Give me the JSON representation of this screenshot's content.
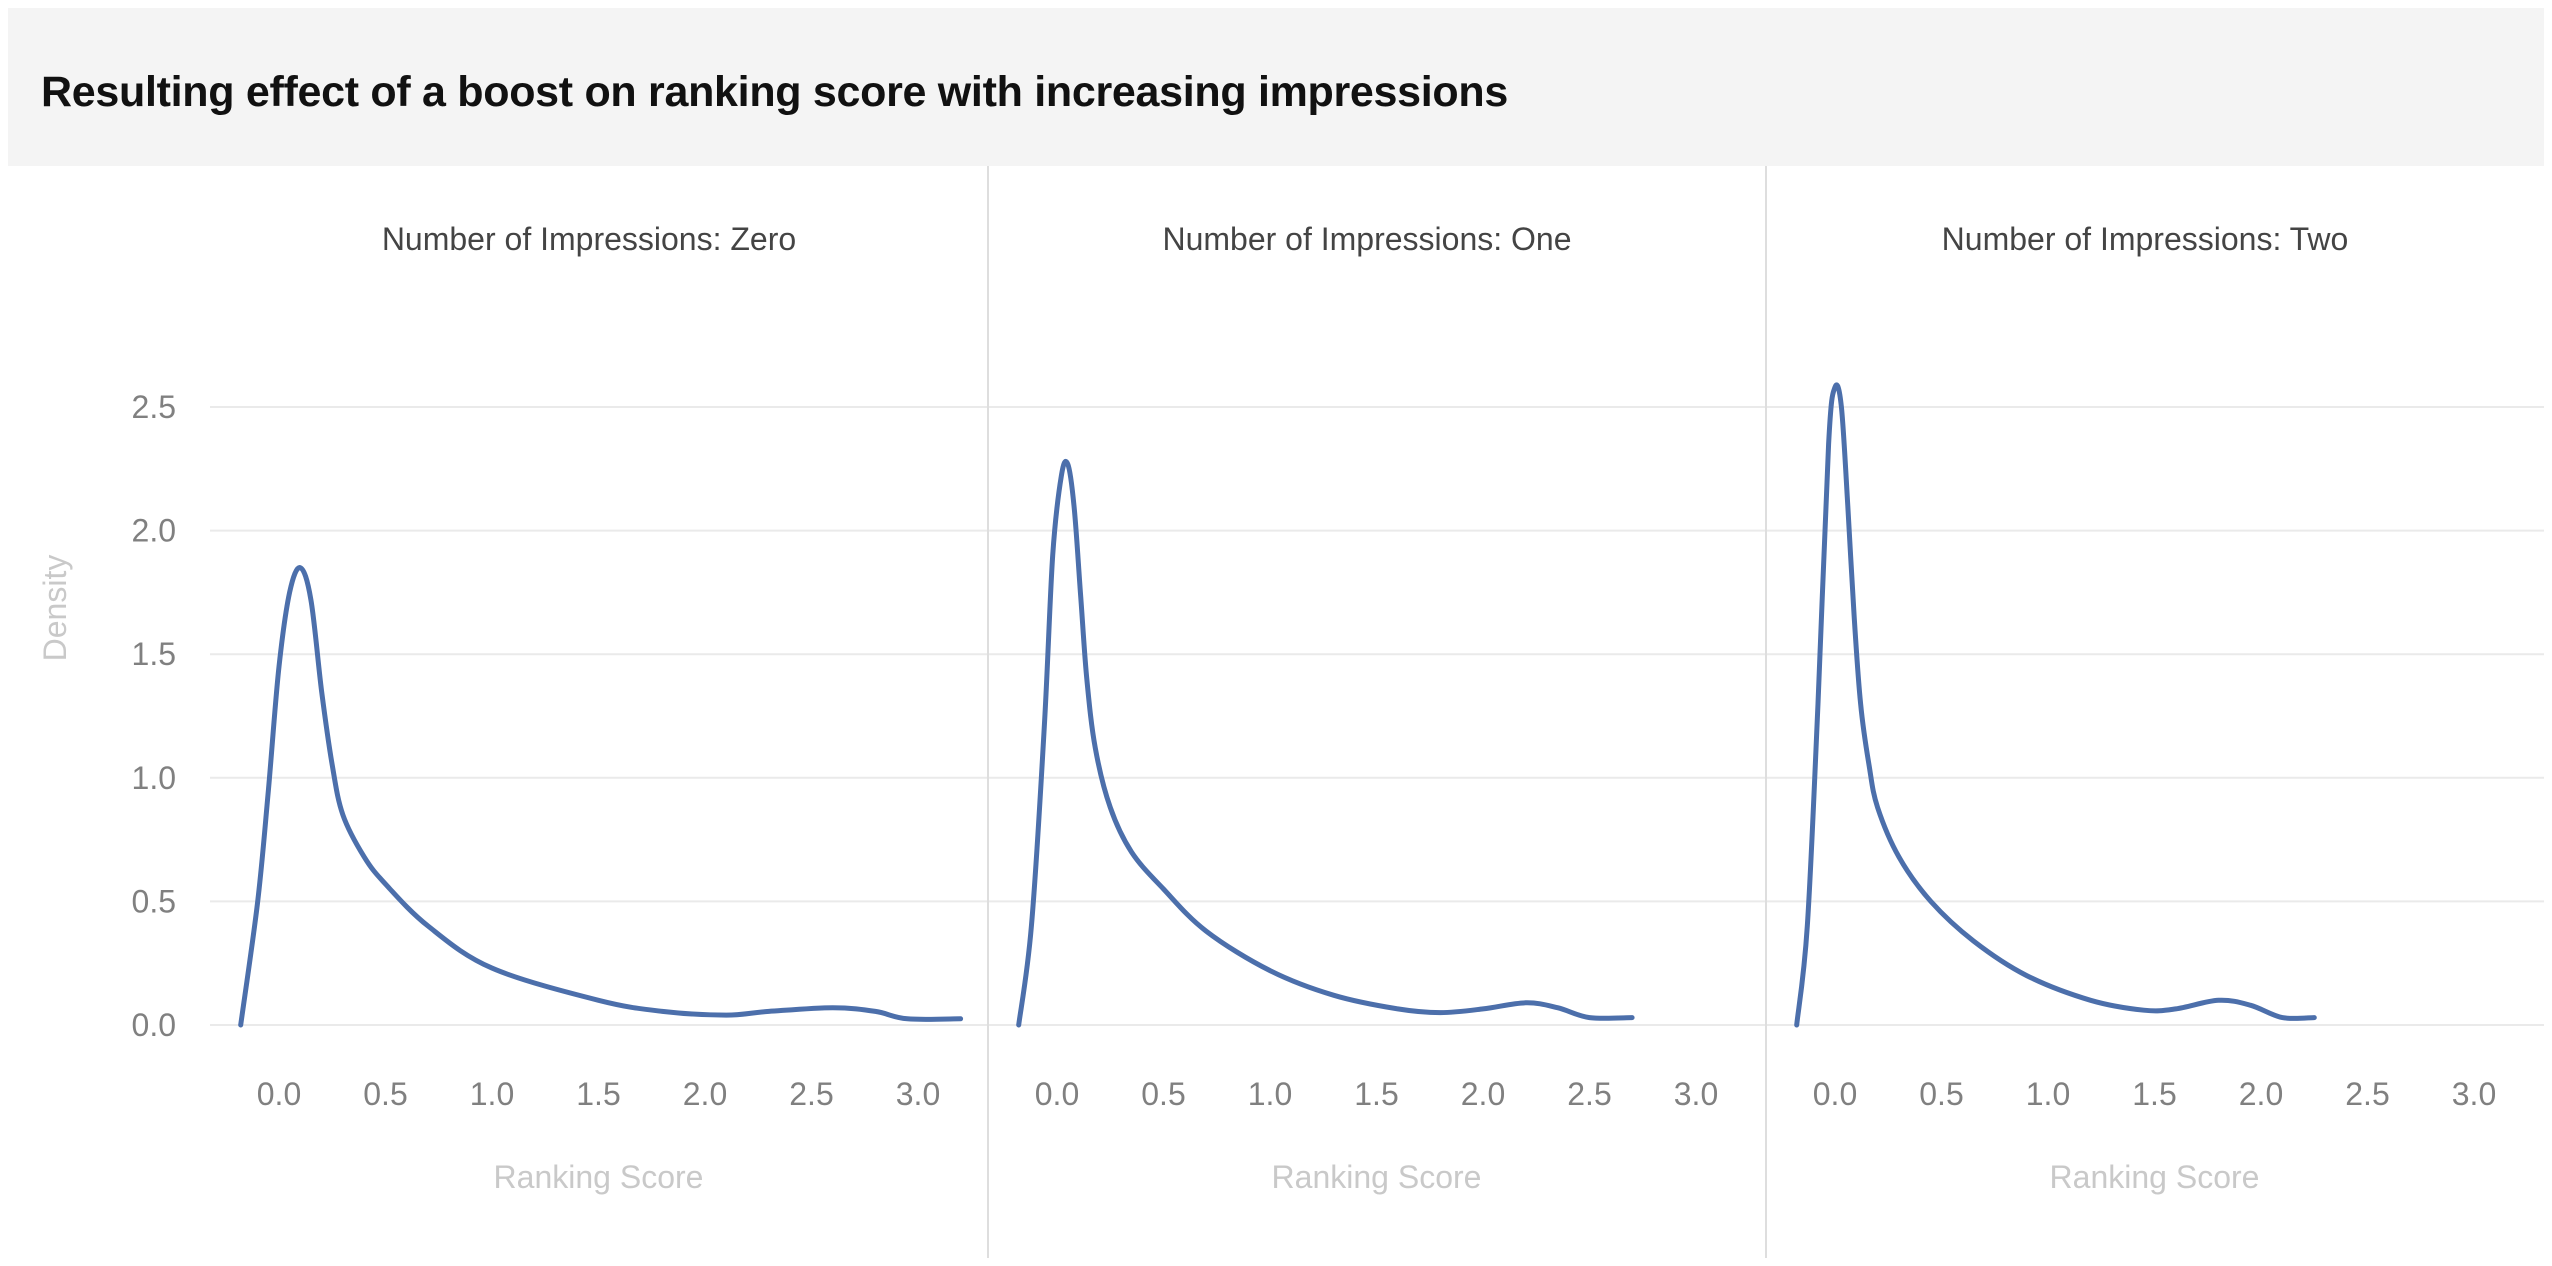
{
  "title": "Resulting effect of a boost on ranking score with increasing impressions",
  "chart_data": {
    "type": "line",
    "title": "Resulting effect of a boost on ranking score with increasing impressions",
    "xlabel": "Ranking Score",
    "ylabel": "Density",
    "xlim": [
      -0.3,
      3.2
    ],
    "ylim": [
      0,
      2.7
    ],
    "x_ticks": [
      "0.0",
      "0.5",
      "1.0",
      "1.5",
      "2.0",
      "2.5",
      "3.0"
    ],
    "y_ticks": [
      "0.0",
      "0.5",
      "1.0",
      "1.5",
      "2.0",
      "2.5"
    ],
    "grid": "horizontal",
    "line_color": "#4c6fab",
    "facets": [
      {
        "label": "Number of Impressions: Zero",
        "x": [
          -0.18,
          -0.1,
          -0.05,
          0.0,
          0.05,
          0.1,
          0.15,
          0.2,
          0.25,
          0.3,
          0.4,
          0.5,
          0.7,
          1.0,
          1.5,
          1.8,
          2.1,
          2.3,
          2.6,
          2.8,
          2.95,
          3.2
        ],
        "y": [
          0.0,
          0.5,
          0.95,
          1.45,
          1.75,
          1.85,
          1.72,
          1.35,
          1.05,
          0.85,
          0.68,
          0.57,
          0.4,
          0.23,
          0.1,
          0.055,
          0.04,
          0.055,
          0.07,
          0.055,
          0.025,
          0.025
        ]
      },
      {
        "label": "Number of Impressions: One",
        "x": [
          -0.18,
          -0.12,
          -0.06,
          -0.02,
          0.02,
          0.05,
          0.08,
          0.11,
          0.14,
          0.18,
          0.25,
          0.35,
          0.5,
          0.7,
          1.0,
          1.3,
          1.6,
          1.8,
          2.0,
          2.2,
          2.35,
          2.5,
          2.7
        ],
        "y": [
          0.0,
          0.4,
          1.2,
          1.9,
          2.22,
          2.27,
          2.1,
          1.75,
          1.4,
          1.12,
          0.88,
          0.7,
          0.55,
          0.38,
          0.22,
          0.12,
          0.065,
          0.05,
          0.065,
          0.09,
          0.07,
          0.03,
          0.03
        ]
      },
      {
        "label": "Number of Impressions: Two",
        "x": [
          -0.18,
          -0.13,
          -0.08,
          -0.03,
          0.0,
          0.03,
          0.06,
          0.09,
          0.12,
          0.16,
          0.2,
          0.3,
          0.45,
          0.65,
          0.9,
          1.2,
          1.45,
          1.6,
          1.8,
          1.95,
          2.1,
          2.25
        ],
        "y": [
          0.0,
          0.4,
          1.3,
          2.35,
          2.58,
          2.5,
          2.1,
          1.65,
          1.3,
          1.05,
          0.88,
          0.68,
          0.5,
          0.34,
          0.2,
          0.1,
          0.06,
          0.065,
          0.1,
          0.08,
          0.03,
          0.03
        ]
      }
    ]
  }
}
